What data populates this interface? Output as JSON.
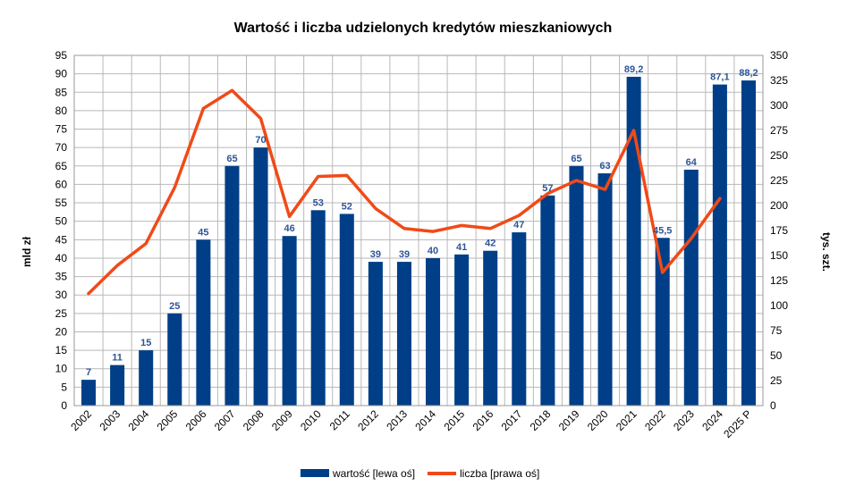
{
  "chart_data": {
    "type": "bar",
    "title": "Wartość i liczba udzielonych kredytów mieszkaniowych",
    "categories": [
      "2002",
      "2003",
      "2004",
      "2005",
      "2006",
      "2007",
      "2008",
      "2009",
      "2010",
      "2011",
      "2012",
      "2013",
      "2014",
      "2015",
      "2016",
      "2017",
      "2018",
      "2019",
      "2020",
      "2021",
      "2022",
      "2023",
      "2024",
      "2025 P"
    ],
    "ylabel": "mld zł",
    "y2label": "tys. szt.",
    "ylim": [
      0,
      95
    ],
    "y2lim": [
      0,
      350
    ],
    "yticks": [
      0,
      5,
      10,
      15,
      20,
      25,
      30,
      35,
      40,
      45,
      50,
      55,
      60,
      65,
      70,
      75,
      80,
      85,
      90,
      95
    ],
    "y2ticks": [
      0,
      25,
      50,
      75,
      100,
      125,
      150,
      175,
      200,
      225,
      250,
      275,
      300,
      325,
      350
    ],
    "grid": true,
    "legend_position": "bottom",
    "series": [
      {
        "name": "wartość [lewa oś]",
        "type": "bar",
        "axis": "left",
        "color": "#003f87",
        "values": [
          7,
          11,
          15,
          25,
          45,
          65,
          70,
          46,
          53,
          52,
          39,
          39,
          40,
          41,
          42,
          47,
          57,
          65,
          63,
          89.2,
          45.5,
          64,
          87.1,
          88.2
        ],
        "labels": [
          "7",
          "11",
          "15",
          "25",
          "45",
          "65",
          "70",
          "46",
          "53",
          "52",
          "39",
          "39",
          "40",
          "41",
          "42",
          "47",
          "57",
          "65",
          "63",
          "89,2",
          "45,5",
          "64",
          "87,1",
          "88,2"
        ]
      },
      {
        "name": "liczba [prawa oś]",
        "type": "line",
        "axis": "right",
        "color": "#f04a18",
        "values": [
          112,
          140,
          162,
          218,
          297,
          315,
          287,
          189,
          229,
          230,
          197,
          177,
          174,
          180,
          177,
          190,
          212,
          225,
          216,
          275,
          133,
          167,
          207,
          null
        ]
      }
    ]
  }
}
